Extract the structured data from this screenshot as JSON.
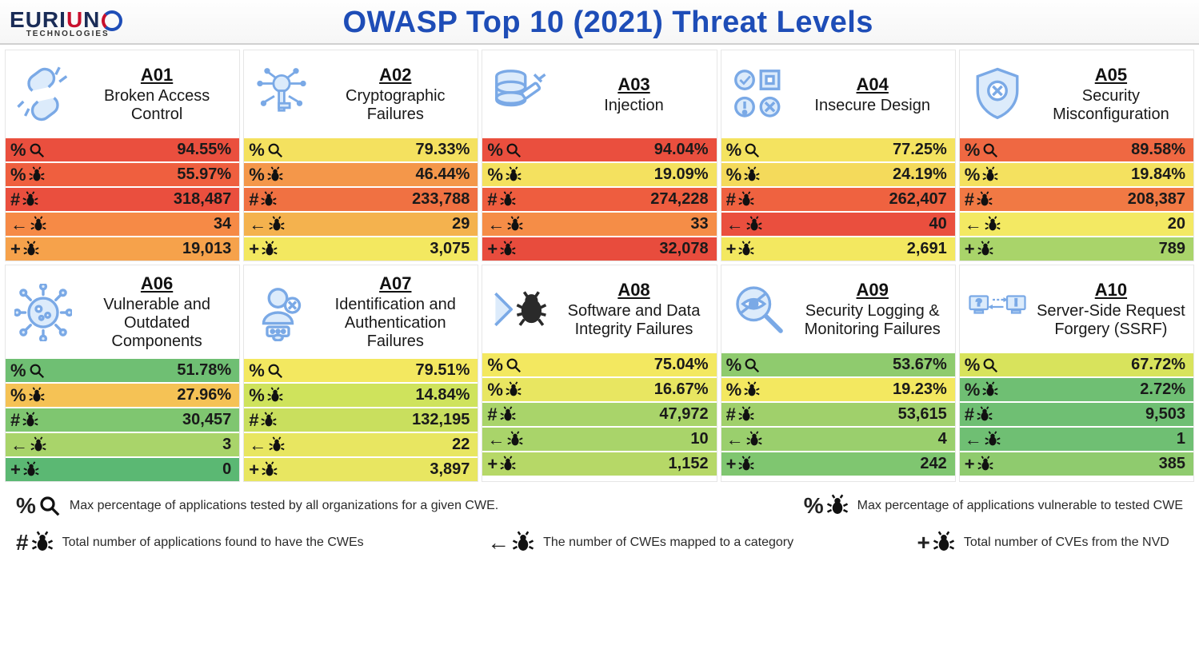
{
  "header": {
    "logo_text": "EURIUN",
    "logo_sub": "TECHNOLOGIES",
    "title": "OWASP Top 10 (2021) Threat Levels",
    "title_color": "#1e4db7"
  },
  "heat_colors": {
    "scale_note": "per-cell background inferred from image",
    "palette": [
      "#e84c3d",
      "#f16b3f",
      "#f59547",
      "#f8c455",
      "#f4e960",
      "#d3e35a",
      "#a9d46a",
      "#7fc670",
      "#5bb873"
    ]
  },
  "metrics": [
    {
      "key": "max_cov",
      "label": "%",
      "icon": "magnify",
      "legend": "Max percentage of applications tested by all organizations for a given CWE."
    },
    {
      "key": "max_vuln",
      "label": "%",
      "icon": "bug",
      "legend": "Max percentage of applications vulnerable to tested CWE"
    },
    {
      "key": "total_apps",
      "label": "#",
      "icon": "bug",
      "legend": "Total number of applications found to have the CWEs"
    },
    {
      "key": "cwes",
      "label": "↔",
      "icon": "bug",
      "legend": "The number of CWEs mapped to a category"
    },
    {
      "key": "cves",
      "label": "+",
      "icon": "bug",
      "legend": "Total number of CVEs from the NVD"
    }
  ],
  "cards": [
    {
      "code": "A01",
      "name": "Broken Access Control",
      "icon": "broken-link",
      "rows": [
        {
          "metric": "max_cov",
          "value": "94.55%",
          "bg": "#ea4f3e"
        },
        {
          "metric": "max_vuln",
          "value": "55.97%",
          "bg": "#ef5f3f"
        },
        {
          "metric": "total_apps",
          "value": "318,487",
          "bg": "#ea4f3e"
        },
        {
          "metric": "cwes",
          "value": "34",
          "bg": "#f68a46"
        },
        {
          "metric": "cves",
          "value": "19,013",
          "bg": "#f6a24b"
        }
      ]
    },
    {
      "code": "A02",
      "name": "Cryptographic Failures",
      "icon": "key-circuit",
      "rows": [
        {
          "metric": "max_cov",
          "value": "79.33%",
          "bg": "#f4e15f"
        },
        {
          "metric": "max_vuln",
          "value": "46.44%",
          "bg": "#f4974a"
        },
        {
          "metric": "total_apps",
          "value": "233,788",
          "bg": "#f07142"
        },
        {
          "metric": "cwes",
          "value": "29",
          "bg": "#f4b24e"
        },
        {
          "metric": "cves",
          "value": "3,075",
          "bg": "#f3e860"
        }
      ]
    },
    {
      "code": "A03",
      "name": "Injection",
      "icon": "db-syringe",
      "rows": [
        {
          "metric": "max_cov",
          "value": "94.04%",
          "bg": "#ea4f3e"
        },
        {
          "metric": "max_vuln",
          "value": "19.09%",
          "bg": "#f4e15f"
        },
        {
          "metric": "total_apps",
          "value": "274,228",
          "bg": "#ee5d3f"
        },
        {
          "metric": "cwes",
          "value": "33",
          "bg": "#f58d47"
        },
        {
          "metric": "cves",
          "value": "32,078",
          "bg": "#e84c3d"
        }
      ]
    },
    {
      "code": "A04",
      "name": "Insecure Design",
      "icon": "ui-checks",
      "rows": [
        {
          "metric": "max_cov",
          "value": "77.25%",
          "bg": "#f4e360"
        },
        {
          "metric": "max_vuln",
          "value": "24.19%",
          "bg": "#f4da5b"
        },
        {
          "metric": "total_apps",
          "value": "262,407",
          "bg": "#ef6240"
        },
        {
          "metric": "cwes",
          "value": "40",
          "bg": "#ea4f3e"
        },
        {
          "metric": "cves",
          "value": "2,691",
          "bg": "#f3e860"
        }
      ]
    },
    {
      "code": "A05",
      "name": "Security Misconfiguration",
      "icon": "shield-x",
      "rows": [
        {
          "metric": "max_cov",
          "value": "89.58%",
          "bg": "#ef6842"
        },
        {
          "metric": "max_vuln",
          "value": "19.84%",
          "bg": "#f4e15f"
        },
        {
          "metric": "total_apps",
          "value": "208,387",
          "bg": "#f17944"
        },
        {
          "metric": "cwes",
          "value": "20",
          "bg": "#f3e963"
        },
        {
          "metric": "cves",
          "value": "789",
          "bg": "#a9d46a"
        }
      ]
    },
    {
      "code": "A06",
      "name": "Vulnerable and Outdated Components",
      "icon": "virus",
      "rows": [
        {
          "metric": "max_cov",
          "value": "51.78%",
          "bg": "#6fbf73"
        },
        {
          "metric": "max_vuln",
          "value": "27.96%",
          "bg": "#f5c255"
        },
        {
          "metric": "total_apps",
          "value": "30,457",
          "bg": "#7fc670"
        },
        {
          "metric": "cwes",
          "value": "3",
          "bg": "#a9d46a"
        },
        {
          "metric": "cves",
          "value": "0",
          "bg": "#5bb873"
        }
      ]
    },
    {
      "code": "A07",
      "name": "Identification and Authentication Failures",
      "icon": "user-auth",
      "rows": [
        {
          "metric": "max_cov",
          "value": "79.51%",
          "bg": "#f3e860"
        },
        {
          "metric": "max_vuln",
          "value": "14.84%",
          "bg": "#cfe35c"
        },
        {
          "metric": "total_apps",
          "value": "132,195",
          "bg": "#c9df5e"
        },
        {
          "metric": "cwes",
          "value": "22",
          "bg": "#e8e661"
        },
        {
          "metric": "cves",
          "value": "3,897",
          "bg": "#e8e661"
        }
      ]
    },
    {
      "code": "A08",
      "name": "Software and Data Integrity Failures",
      "icon": "chevron-bug",
      "rows": [
        {
          "metric": "max_cov",
          "value": "75.04%",
          "bg": "#f3e860"
        },
        {
          "metric": "max_vuln",
          "value": "16.67%",
          "bg": "#e8e661"
        },
        {
          "metric": "total_apps",
          "value": "47,972",
          "bg": "#a9d46a"
        },
        {
          "metric": "cwes",
          "value": "10",
          "bg": "#a9d46a"
        },
        {
          "metric": "cves",
          "value": "1,152",
          "bg": "#b6d867"
        }
      ]
    },
    {
      "code": "A09",
      "name": "Security Logging & Monitoring Failures",
      "icon": "eye-slash-mag",
      "rows": [
        {
          "metric": "max_cov",
          "value": "53.67%",
          "bg": "#8fcb6e"
        },
        {
          "metric": "max_vuln",
          "value": "19.23%",
          "bg": "#f3e860"
        },
        {
          "metric": "total_apps",
          "value": "53,615",
          "bg": "#a0d06b"
        },
        {
          "metric": "cwes",
          "value": "4",
          "bg": "#9acf6d"
        },
        {
          "metric": "cves",
          "value": "242",
          "bg": "#7fc670"
        }
      ]
    },
    {
      "code": "A10",
      "name": "Server-Side Request Forgery (SSRF)",
      "icon": "ssrf",
      "rows": [
        {
          "metric": "max_cov",
          "value": "67.72%",
          "bg": "#d8e35c"
        },
        {
          "metric": "max_vuln",
          "value": "2.72%",
          "bg": "#6fbf73"
        },
        {
          "metric": "total_apps",
          "value": "9,503",
          "bg": "#6fbf73"
        },
        {
          "metric": "cwes",
          "value": "1",
          "bg": "#6fbf73"
        },
        {
          "metric": "cves",
          "value": "385",
          "bg": "#8fcb6e"
        }
      ]
    }
  ],
  "legend": [
    {
      "sym": "%",
      "icon": "magnify",
      "text": "Max percentage of applications tested by all organizations for a given CWE."
    },
    {
      "sym": "%",
      "icon": "bug",
      "text": "Max percentage of applications vulnerable to tested CWE"
    },
    {
      "sym": "#",
      "icon": "bug",
      "text": "Total number of applications found to have the CWEs"
    },
    {
      "sym": "↔",
      "icon": "bug",
      "text": "The number of CWEs mapped to a category"
    },
    {
      "sym": "+",
      "icon": "bug",
      "text": "Total number of CVEs from the NVD"
    }
  ],
  "icon_stroke": "#7aa9e6",
  "icon_fill": "#dcebfb"
}
